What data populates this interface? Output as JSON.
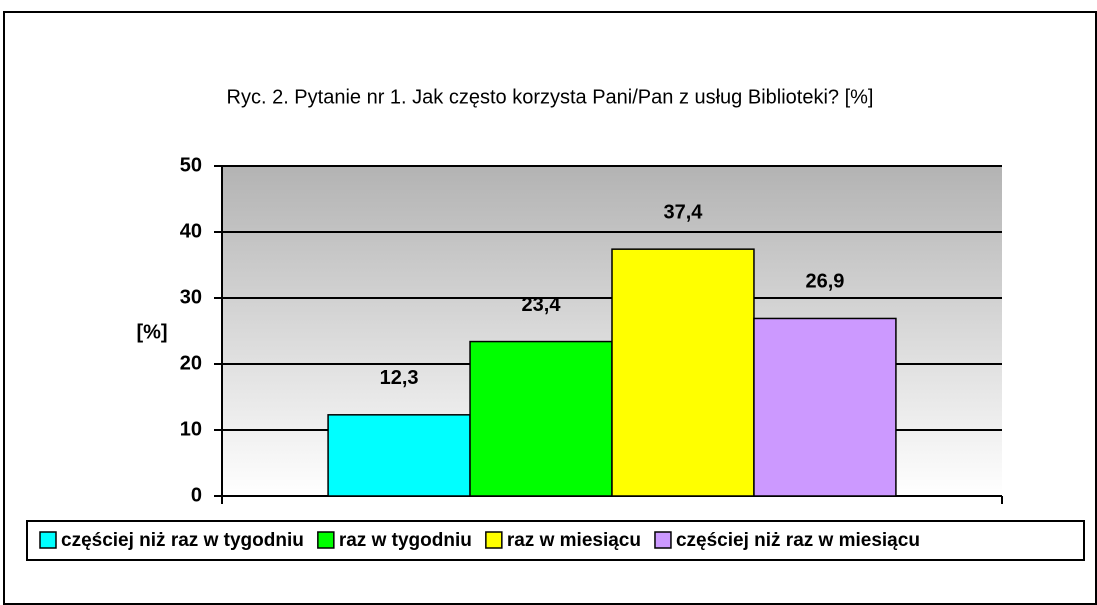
{
  "chart_data": {
    "type": "bar",
    "title": "Ryc. 2. Pytanie nr 1. Jak często korzysta Pani/Pan z usług Biblioteki? [%]",
    "ylabel": "[%]",
    "categories": [
      null
    ],
    "series": [
      {
        "name": "częściej niż raz w tygodniu",
        "color": "#00ffff",
        "values": [
          12.3
        ],
        "value_labels": [
          "12,3"
        ]
      },
      {
        "name": "raz w tygodniu",
        "color": "#00ff00",
        "values": [
          23.4
        ],
        "value_labels": [
          "23,4"
        ]
      },
      {
        "name": "raz w miesiącu",
        "color": "#ffff00",
        "values": [
          37.4
        ],
        "value_labels": [
          "37,4"
        ]
      },
      {
        "name": "częściej niż raz w miesiącu",
        "color": "#cc99ff",
        "values": [
          26.9
        ],
        "value_labels": [
          "26,9"
        ]
      }
    ],
    "ylim": [
      0,
      50
    ],
    "yticks": [
      0,
      10,
      20,
      30,
      40,
      50
    ],
    "grid": true,
    "legend": "bottom"
  }
}
